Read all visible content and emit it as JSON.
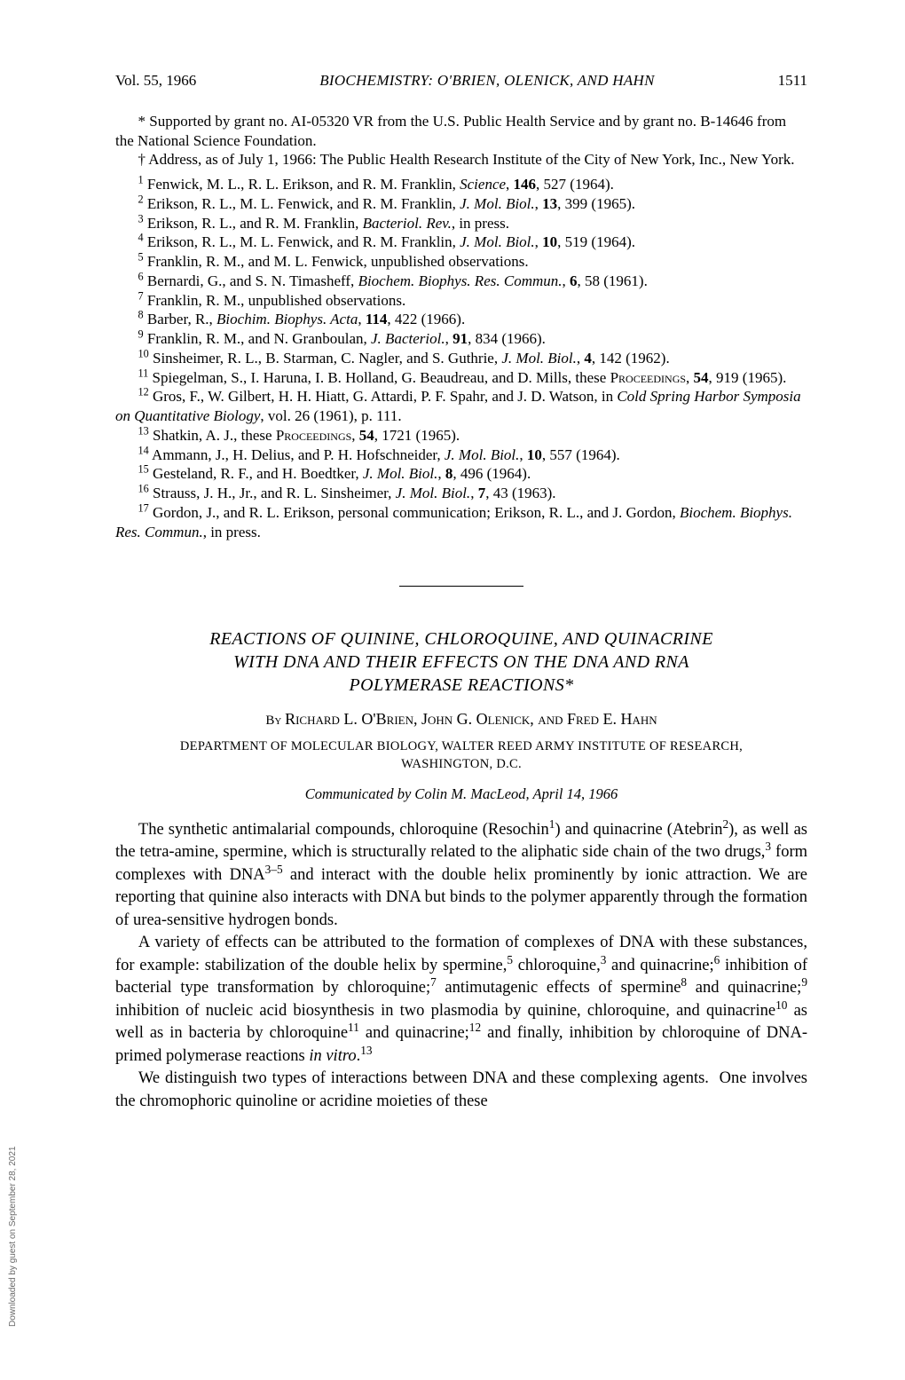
{
  "header": {
    "vol": "Vol. 55, 1966",
    "running": "BIOCHEMISTRY: O'BRIEN, OLENICK, AND HAHN",
    "pageno": "1511"
  },
  "footnotes": {
    "star": "* Supported by grant no. AI-05320 VR from the U.S. Public Health Service and by grant no. B-14646 from the National Science Foundation.",
    "dagger": "† Address, as of July 1, 1966:   The Public Health Research Institute of the City of New York, Inc., New York."
  },
  "article": {
    "title_line1": "REACTIONS OF QUININE, CHLOROQUINE, AND QUINACRINE",
    "title_line2": "WITH DNA AND THEIR EFFECTS ON THE DNA AND RNA",
    "title_line3": "POLYMERASE REACTIONS*",
    "byline_by": "By ",
    "byline_names": "Richard L. O'Brien, John G. Olenick, and Fred E. Hahn",
    "affiliation_l1": "DEPARTMENT OF MOLECULAR BIOLOGY, WALTER REED ARMY INSTITUTE OF RESEARCH,",
    "affiliation_l2": "WASHINGTON, D.C.",
    "communicated": "Communicated by Colin M. MacLeod, April 14, 1966"
  },
  "watermark": "Downloaded by guest on September 28, 2021"
}
